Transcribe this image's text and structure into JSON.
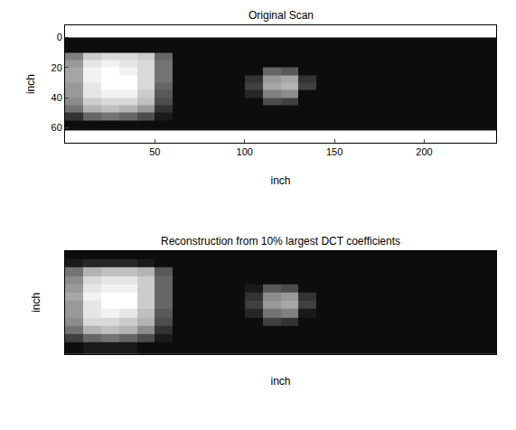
{
  "chart_data": [
    {
      "type": "heatmap",
      "title": "Original Scan",
      "x_label": "inch",
      "y_label": "inch",
      "color": "gray",
      "xlim": [
        0,
        240
      ],
      "ylim": [
        70,
        -8
      ],
      "xticks": [
        50,
        100,
        150,
        200
      ],
      "yticks": [
        0,
        20,
        40,
        60
      ],
      "zlim": [
        0,
        1
      ],
      "x_edges": [
        0,
        10,
        20,
        30,
        40,
        50,
        60,
        70,
        80,
        90,
        100,
        110,
        120,
        130,
        140,
        150,
        160,
        170,
        180,
        190,
        200,
        210,
        220,
        230,
        240
      ],
      "y_edges": [
        0,
        5,
        10,
        15,
        20,
        25,
        30,
        35,
        40,
        45,
        50,
        55,
        62
      ],
      "cells": [
        [
          0.05,
          0.05,
          0.05,
          0.05,
          0.05,
          0.05,
          0.05,
          0.05,
          0.05,
          0.05,
          0.05,
          0.05,
          0.05,
          0.05,
          0.05,
          0.05,
          0.05,
          0.05,
          0.05,
          0.05,
          0.05,
          0.05,
          0.05,
          0.05
        ],
        [
          0.05,
          0.05,
          0.05,
          0.05,
          0.05,
          0.05,
          0.05,
          0.05,
          0.05,
          0.05,
          0.05,
          0.05,
          0.05,
          0.05,
          0.05,
          0.05,
          0.05,
          0.05,
          0.05,
          0.05,
          0.05,
          0.05,
          0.05,
          0.05
        ],
        [
          0.5,
          0.8,
          0.85,
          0.85,
          0.8,
          0.4,
          0.05,
          0.05,
          0.05,
          0.05,
          0.05,
          0.05,
          0.05,
          0.05,
          0.05,
          0.05,
          0.05,
          0.05,
          0.05,
          0.05,
          0.05,
          0.05,
          0.05,
          0.05
        ],
        [
          0.6,
          0.9,
          0.95,
          0.9,
          0.85,
          0.45,
          0.05,
          0.05,
          0.05,
          0.05,
          0.05,
          0.05,
          0.05,
          0.05,
          0.05,
          0.05,
          0.05,
          0.05,
          0.05,
          0.05,
          0.05,
          0.05,
          0.05,
          0.05
        ],
        [
          0.65,
          0.95,
          1,
          0.95,
          0.85,
          0.45,
          0.05,
          0.05,
          0.05,
          0.05,
          0.05,
          0.4,
          0.35,
          0.05,
          0.05,
          0.05,
          0.05,
          0.05,
          0.05,
          0.05,
          0.05,
          0.05,
          0.05,
          0.05
        ],
        [
          0.65,
          0.95,
          1,
          1,
          0.85,
          0.45,
          0.05,
          0.05,
          0.05,
          0.05,
          0.2,
          0.6,
          0.65,
          0.2,
          0.05,
          0.05,
          0.05,
          0.05,
          0.05,
          0.05,
          0.05,
          0.05,
          0.05,
          0.05
        ],
        [
          0.6,
          0.9,
          1,
          1,
          0.85,
          0.4,
          0.05,
          0.05,
          0.05,
          0.05,
          0.25,
          0.65,
          0.7,
          0.25,
          0.05,
          0.05,
          0.05,
          0.05,
          0.05,
          0.05,
          0.05,
          0.05,
          0.05,
          0.05
        ],
        [
          0.6,
          0.9,
          0.95,
          0.95,
          0.8,
          0.35,
          0.05,
          0.05,
          0.05,
          0.05,
          0.15,
          0.5,
          0.55,
          0.05,
          0.05,
          0.05,
          0.05,
          0.05,
          0.05,
          0.05,
          0.05,
          0.05,
          0.05,
          0.05
        ],
        [
          0.55,
          0.8,
          0.85,
          0.85,
          0.75,
          0.3,
          0.05,
          0.05,
          0.05,
          0.05,
          0.05,
          0.3,
          0.25,
          0.05,
          0.05,
          0.05,
          0.05,
          0.05,
          0.05,
          0.05,
          0.05,
          0.05,
          0.05,
          0.05
        ],
        [
          0.45,
          0.7,
          0.75,
          0.7,
          0.6,
          0.2,
          0.05,
          0.05,
          0.05,
          0.05,
          0.05,
          0.05,
          0.05,
          0.05,
          0.05,
          0.05,
          0.05,
          0.05,
          0.05,
          0.05,
          0.05,
          0.05,
          0.05,
          0.05
        ],
        [
          0.2,
          0.4,
          0.45,
          0.4,
          0.3,
          0.1,
          0.05,
          0.05,
          0.05,
          0.05,
          0.05,
          0.05,
          0.05,
          0.05,
          0.05,
          0.05,
          0.05,
          0.05,
          0.05,
          0.05,
          0.05,
          0.05,
          0.05,
          0.05
        ],
        [
          0.05,
          0.05,
          0.05,
          0.05,
          0.05,
          0.05,
          0.05,
          0.05,
          0.05,
          0.05,
          0.05,
          0.05,
          0.05,
          0.05,
          0.05,
          0.05,
          0.05,
          0.05,
          0.05,
          0.05,
          0.05,
          0.05,
          0.05,
          0.05
        ]
      ]
    },
    {
      "type": "heatmap",
      "title": "Reconstruction from 10% largest DCT coefficients",
      "x_label": "inch",
      "y_label": "inch",
      "color": "gray",
      "tick_labels": false,
      "xlim": [
        0,
        240
      ],
      "ylim": [
        62,
        0
      ],
      "zlim": [
        0,
        1
      ],
      "x_edges": [
        0,
        10,
        20,
        30,
        40,
        50,
        60,
        70,
        80,
        90,
        100,
        110,
        120,
        130,
        140,
        150,
        160,
        170,
        180,
        190,
        200,
        210,
        220,
        230,
        240
      ],
      "y_edges": [
        0,
        5,
        10,
        15,
        20,
        25,
        30,
        35,
        40,
        45,
        50,
        55,
        62
      ],
      "cells": [
        [
          0.05,
          0.05,
          0.05,
          0.05,
          0.05,
          0.05,
          0.05,
          0.05,
          0.05,
          0.05,
          0.05,
          0.05,
          0.05,
          0.05,
          0.05,
          0.05,
          0.05,
          0.05,
          0.05,
          0.05,
          0.05,
          0.05,
          0.05,
          0.05
        ],
        [
          0.1,
          0.15,
          0.15,
          0.15,
          0.1,
          0.05,
          0.05,
          0.05,
          0.05,
          0.05,
          0.05,
          0.05,
          0.05,
          0.05,
          0.05,
          0.05,
          0.05,
          0.05,
          0.05,
          0.05,
          0.05,
          0.05,
          0.05,
          0.05
        ],
        [
          0.45,
          0.7,
          0.75,
          0.75,
          0.7,
          0.35,
          0.05,
          0.05,
          0.05,
          0.05,
          0.05,
          0.05,
          0.05,
          0.05,
          0.05,
          0.05,
          0.05,
          0.05,
          0.05,
          0.05,
          0.05,
          0.05,
          0.05,
          0.05
        ],
        [
          0.55,
          0.85,
          0.9,
          0.9,
          0.8,
          0.4,
          0.05,
          0.05,
          0.05,
          0.05,
          0.05,
          0.05,
          0.05,
          0.05,
          0.05,
          0.05,
          0.05,
          0.05,
          0.05,
          0.05,
          0.05,
          0.05,
          0.05,
          0.05
        ],
        [
          0.6,
          0.9,
          0.95,
          0.95,
          0.8,
          0.4,
          0.05,
          0.05,
          0.05,
          0.05,
          0.1,
          0.35,
          0.3,
          0.05,
          0.05,
          0.05,
          0.05,
          0.05,
          0.05,
          0.05,
          0.05,
          0.05,
          0.05,
          0.05
        ],
        [
          0.65,
          0.95,
          1,
          1,
          0.8,
          0.4,
          0.05,
          0.05,
          0.05,
          0.05,
          0.2,
          0.55,
          0.6,
          0.2,
          0.05,
          0.05,
          0.05,
          0.05,
          0.05,
          0.05,
          0.05,
          0.05,
          0.05,
          0.05
        ],
        [
          0.6,
          0.9,
          1,
          1,
          0.8,
          0.4,
          0.05,
          0.05,
          0.05,
          0.05,
          0.25,
          0.6,
          0.65,
          0.25,
          0.05,
          0.05,
          0.05,
          0.05,
          0.05,
          0.05,
          0.05,
          0.05,
          0.05,
          0.05
        ],
        [
          0.6,
          0.9,
          0.95,
          0.9,
          0.75,
          0.35,
          0.05,
          0.05,
          0.05,
          0.05,
          0.15,
          0.45,
          0.5,
          0.1,
          0.05,
          0.05,
          0.05,
          0.05,
          0.05,
          0.05,
          0.05,
          0.05,
          0.05,
          0.05
        ],
        [
          0.55,
          0.85,
          0.85,
          0.8,
          0.7,
          0.3,
          0.05,
          0.05,
          0.05,
          0.05,
          0.05,
          0.25,
          0.2,
          0.05,
          0.05,
          0.05,
          0.05,
          0.05,
          0.05,
          0.05,
          0.05,
          0.05,
          0.05,
          0.05
        ],
        [
          0.45,
          0.7,
          0.75,
          0.7,
          0.55,
          0.2,
          0.05,
          0.05,
          0.05,
          0.05,
          0.05,
          0.05,
          0.05,
          0.05,
          0.05,
          0.05,
          0.05,
          0.05,
          0.05,
          0.05,
          0.05,
          0.05,
          0.05,
          0.05
        ],
        [
          0.25,
          0.4,
          0.45,
          0.4,
          0.3,
          0.1,
          0.05,
          0.05,
          0.05,
          0.05,
          0.05,
          0.05,
          0.05,
          0.05,
          0.05,
          0.05,
          0.05,
          0.05,
          0.05,
          0.05,
          0.05,
          0.05,
          0.05,
          0.05
        ],
        [
          0.05,
          0.1,
          0.1,
          0.1,
          0.05,
          0.05,
          0.05,
          0.05,
          0.05,
          0.05,
          0.05,
          0.05,
          0.05,
          0.05,
          0.05,
          0.05,
          0.05,
          0.05,
          0.05,
          0.05,
          0.05,
          0.05,
          0.05,
          0.05
        ]
      ]
    }
  ]
}
